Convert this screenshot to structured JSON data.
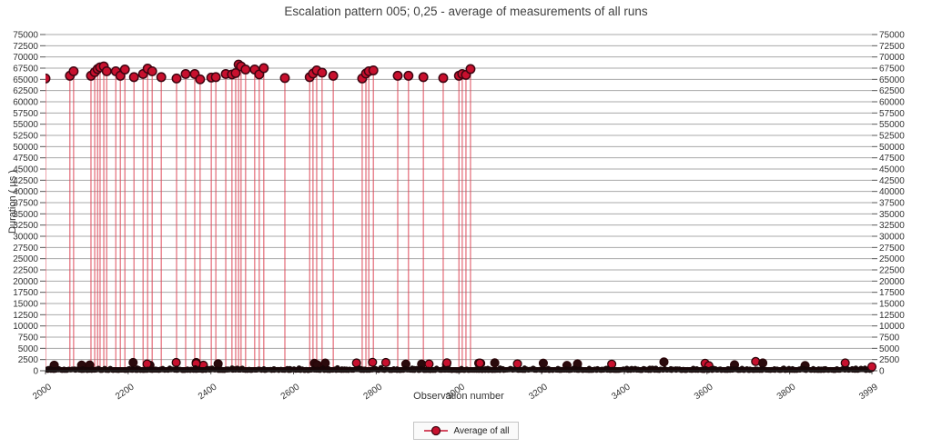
{
  "title": "Escalation pattern 005; 0,25 - average of measurements of all runs",
  "chart_data": {
    "type": "scatter",
    "stem": true,
    "title": "Escalation pattern 005; 0,25 - average of measurements of all runs",
    "xlabel": "Observation number",
    "ylabel": "Duration ( µs )",
    "xlim": [
      2000,
      3999
    ],
    "ylim": [
      0,
      75000
    ],
    "grid": "horizontal",
    "dual_y_axis": true,
    "x_ticks": [
      2000,
      2200,
      2400,
      2600,
      2800,
      3000,
      3200,
      3400,
      3600,
      3800,
      3999
    ],
    "y_ticks": [
      0,
      2500,
      5000,
      7500,
      10000,
      12500,
      15000,
      17500,
      20000,
      22500,
      25000,
      27500,
      30000,
      32500,
      35000,
      37500,
      40000,
      42500,
      45000,
      47500,
      50000,
      52500,
      55000,
      57500,
      60000,
      62500,
      65000,
      67500,
      70000,
      72500,
      75000
    ],
    "legend": {
      "position": "bottom-center",
      "entries": [
        {
          "label": "Average of all",
          "marker": "circle",
          "color": "#c8102e"
        }
      ]
    },
    "series": [
      {
        "name": "Average of all",
        "marker": "circle",
        "marker_color": "#c8102e",
        "marker_outline": "#3d0511",
        "stem_color": "#dd4455",
        "spikes": [
          [
            2000,
            65200
          ],
          [
            2059,
            65800
          ],
          [
            2068,
            66800
          ],
          [
            2110,
            65800
          ],
          [
            2119,
            66600
          ],
          [
            2126,
            67300
          ],
          [
            2132,
            67700
          ],
          [
            2141,
            67900
          ],
          [
            2148,
            66800
          ],
          [
            2170,
            66800
          ],
          [
            2181,
            65800
          ],
          [
            2192,
            67200
          ],
          [
            2214,
            65500
          ],
          [
            2236,
            66200
          ],
          [
            2247,
            67400
          ],
          [
            2258,
            66800
          ],
          [
            2280,
            65500
          ],
          [
            2317,
            65200
          ],
          [
            2339,
            66200
          ],
          [
            2361,
            66200
          ],
          [
            2374,
            65000
          ],
          [
            2401,
            65400
          ],
          [
            2412,
            65500
          ],
          [
            2436,
            66200
          ],
          [
            2451,
            66100
          ],
          [
            2460,
            66400
          ],
          [
            2467,
            68300
          ],
          [
            2473,
            67900
          ],
          [
            2484,
            67200
          ],
          [
            2506,
            67200
          ],
          [
            2517,
            66100
          ],
          [
            2528,
            67500
          ],
          [
            2579,
            65300
          ],
          [
            2639,
            65500
          ],
          [
            2647,
            66300
          ],
          [
            2656,
            67000
          ],
          [
            2669,
            66500
          ],
          [
            2696,
            65800
          ],
          [
            2766,
            65200
          ],
          [
            2775,
            66300
          ],
          [
            2782,
            66800
          ],
          [
            2793,
            67000
          ],
          [
            2852,
            65800
          ],
          [
            2878,
            65800
          ],
          [
            2914,
            65500
          ],
          [
            2962,
            65300
          ],
          [
            3000,
            65800
          ],
          [
            3008,
            66200
          ],
          [
            3017,
            66000
          ],
          [
            3028,
            67300
          ]
        ],
        "baseline_noise": {
          "description": "dense band of overlapping measurements near zero across the whole x range",
          "typical_range_us": [
            80,
            730
          ],
          "bump_range_us": [
            1100,
            2100
          ],
          "point_count": 900,
          "bump_count": 40,
          "seed": 1337,
          "end_cap": [
            3999,
            900
          ]
        }
      }
    ]
  },
  "colors": {
    "marker_fill": "#c8102e",
    "marker_outline": "#3d0511",
    "stem": "#dd4455",
    "gridline": "#a8a8a8",
    "axis_line": "#222222",
    "tick_text": "#333333",
    "title_text": "#3f3f3f",
    "baseline_band": "#190708",
    "legend_border": "#c4c4c4",
    "legend_bg": "#fafafa"
  }
}
